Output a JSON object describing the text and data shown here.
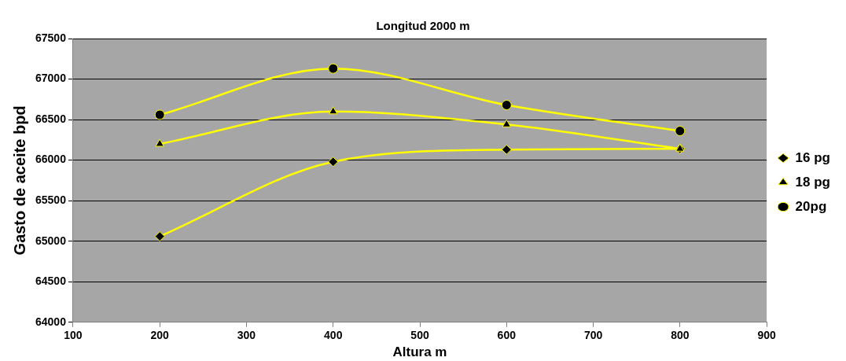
{
  "chart_data": {
    "type": "line",
    "title": "Longitud 2000 m",
    "xlabel": "Altura m",
    "ylabel": "Gasto de aceite bpd",
    "x": [
      200,
      400,
      600,
      800
    ],
    "series": [
      {
        "name": "16 pg",
        "color": "#ffff00",
        "marker": "diamond",
        "values": [
          65060,
          65980,
          66130,
          66140
        ]
      },
      {
        "name": "18 pg",
        "color": "#ffff00",
        "marker": "triangle",
        "values": [
          66200,
          66600,
          66440,
          66140
        ]
      },
      {
        "name": "20pg",
        "color": "#ffff00",
        "marker": "circle",
        "values": [
          66560,
          67130,
          66680,
          66360
        ]
      }
    ],
    "xlim": [
      100,
      900
    ],
    "xticks": [
      100,
      200,
      300,
      400,
      500,
      600,
      700,
      800,
      900
    ],
    "ylim": [
      64000,
      67500
    ],
    "yticks": [
      64000,
      64500,
      65000,
      65500,
      66000,
      66500,
      67000,
      67500
    ],
    "grid": "y",
    "legend": "right",
    "line_style": "solid"
  }
}
